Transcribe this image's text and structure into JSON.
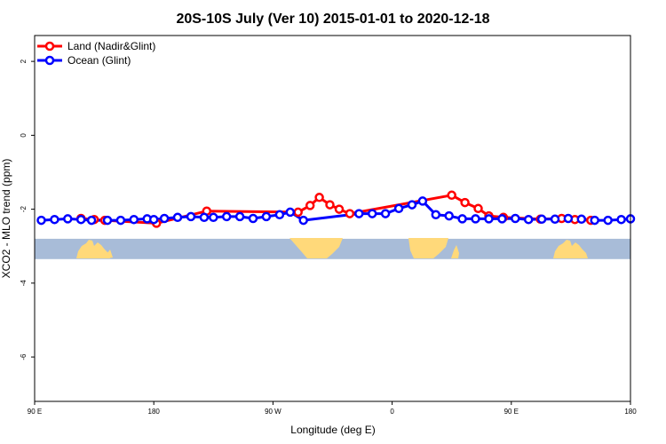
{
  "chart_data": {
    "type": "line",
    "title": "20S-10S July (Ver 10)   2015-01-01 to 2020-12-18",
    "xlabel": "Longitude (deg E)",
    "ylabel": "XCO2 - MLO trend (ppm)",
    "x_ticks": [
      {
        "value": 90,
        "label": "90 E"
      },
      {
        "value": 180,
        "label": "180"
      },
      {
        "value": 270,
        "label": "90 W"
      },
      {
        "value": 360,
        "label": "0"
      },
      {
        "value": 450,
        "label": "90 E"
      },
      {
        "value": 540,
        "label": "180"
      }
    ],
    "y_ticks": [
      {
        "value": 2,
        "label": "2"
      },
      {
        "value": 0,
        "label": "0"
      },
      {
        "value": -2,
        "label": "-2"
      },
      {
        "value": -4,
        "label": "-4"
      },
      {
        "value": -6,
        "label": "-6"
      }
    ],
    "xlim": [
      90,
      540
    ],
    "ylim": [
      -7.2,
      2.7
    ],
    "legend_position": "top-left",
    "series": [
      {
        "name": "Land (Nadir&Glint)",
        "color": "#ff0000",
        "x": [
          125,
          135,
          143,
          182,
          220,
          289,
          298,
          305,
          313,
          320,
          328,
          405,
          415,
          425,
          433,
          444,
          472,
          488,
          498,
          510
        ],
        "y": [
          -2.25,
          -2.28,
          -2.3,
          -2.38,
          -2.05,
          -2.08,
          -1.9,
          -1.68,
          -1.88,
          -2.0,
          -2.12,
          -1.62,
          -1.82,
          -1.98,
          -2.18,
          -2.22,
          -2.27,
          -2.25,
          -2.28,
          -2.3
        ]
      },
      {
        "name": "Ocean (Glint)",
        "color": "#0000ff",
        "x": [
          95,
          105,
          115,
          125,
          133,
          145,
          155,
          165,
          175,
          180,
          188,
          198,
          208,
          218,
          225,
          235,
          245,
          255,
          265,
          275,
          283,
          293,
          335,
          345,
          355,
          365,
          375,
          383,
          393,
          403,
          413,
          423,
          433,
          443,
          453,
          463,
          473,
          483,
          493,
          503,
          513,
          523,
          533,
          540
        ],
        "y": [
          -2.3,
          -2.28,
          -2.26,
          -2.28,
          -2.3,
          -2.3,
          -2.3,
          -2.28,
          -2.26,
          -2.28,
          -2.25,
          -2.22,
          -2.2,
          -2.22,
          -2.22,
          -2.2,
          -2.2,
          -2.25,
          -2.2,
          -2.15,
          -2.08,
          -2.3,
          -2.12,
          -2.12,
          -2.12,
          -1.98,
          -1.88,
          -1.78,
          -2.15,
          -2.18,
          -2.26,
          -2.26,
          -2.26,
          -2.26,
          -2.25,
          -2.28,
          -2.27,
          -2.27,
          -2.25,
          -2.27,
          -2.3,
          -2.3,
          -2.28,
          -2.26
        ]
      }
    ]
  },
  "map_strip": {
    "ocean_color": "#a8bcd8",
    "land_color": "#ffd97a",
    "y_top": -2.8,
    "y_bottom": -3.35
  }
}
